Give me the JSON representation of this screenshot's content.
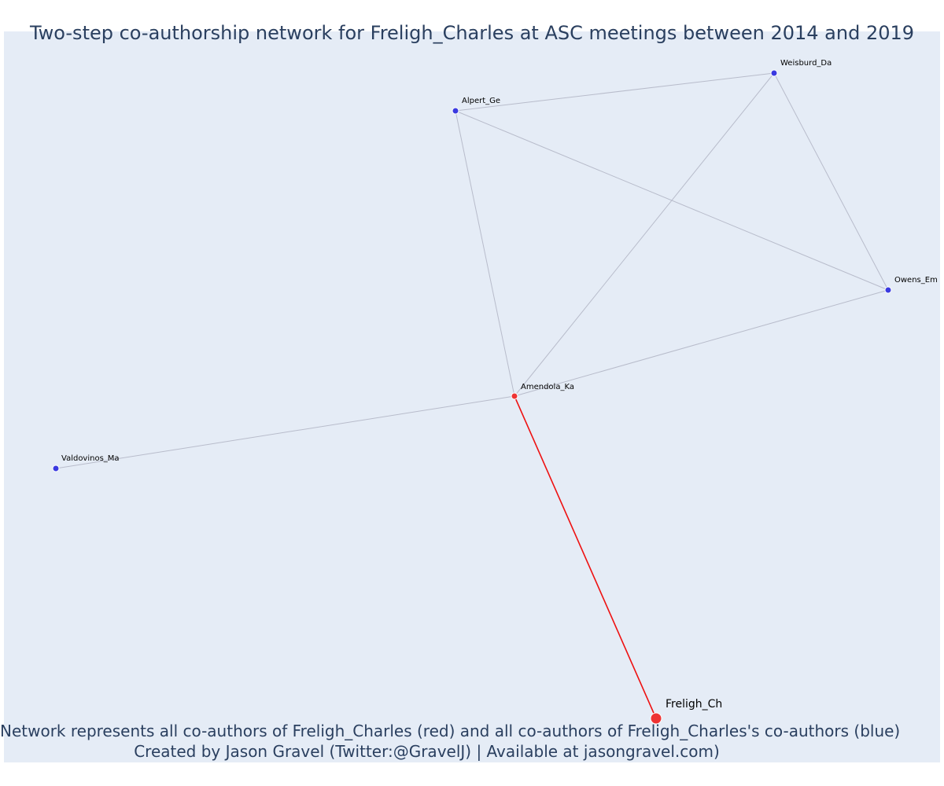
{
  "title": "Two-step co-authorship network for Freligh_Charles at ASC meetings between 2014 and 2019",
  "caption": {
    "line1": "Network represents all co-authors of Freligh_Charles (red) and all co-authors of Freligh_Charles's co-authors (blue)",
    "line2": "Created by Jason Gravel (Twitter:@GravelJ) | Available at jasongravel.com)"
  },
  "colors": {
    "plot_bg": "#e5ecf6",
    "edge": "#b8bccb",
    "ego_edge": "#ee1111",
    "coauthor_node": "#ee3333",
    "second_step_node": "#3a3ae0",
    "text": "#2a3f5f"
  },
  "nodes": [
    {
      "id": "Freligh_Ch",
      "label": "Freligh_Ch",
      "role": "ego"
    },
    {
      "id": "Amendola_Ka",
      "label": "Amendola_Ka",
      "role": "coauthor"
    },
    {
      "id": "Alpert_Ge",
      "label": "Alpert_Ge",
      "role": "second_step"
    },
    {
      "id": "Weisburd_Da",
      "label": "Weisburd_Da",
      "role": "second_step"
    },
    {
      "id": "Owens_Em",
      "label": "Owens_Em",
      "role": "second_step"
    },
    {
      "id": "Valdovinos_Ma",
      "label": "Valdovinos_Ma",
      "role": "second_step"
    }
  ],
  "edges": [
    {
      "source": "Freligh_Ch",
      "target": "Amendola_Ka",
      "type": "ego"
    },
    {
      "source": "Amendola_Ka",
      "target": "Alpert_Ge",
      "type": "other"
    },
    {
      "source": "Amendola_Ka",
      "target": "Weisburd_Da",
      "type": "other"
    },
    {
      "source": "Amendola_Ka",
      "target": "Owens_Em",
      "type": "other"
    },
    {
      "source": "Amendola_Ka",
      "target": "Valdovinos_Ma",
      "type": "other"
    },
    {
      "source": "Alpert_Ge",
      "target": "Weisburd_Da",
      "type": "other"
    },
    {
      "source": "Alpert_Ge",
      "target": "Owens_Em",
      "type": "other"
    },
    {
      "source": "Weisburd_Da",
      "target": "Owens_Em",
      "type": "other"
    }
  ]
}
